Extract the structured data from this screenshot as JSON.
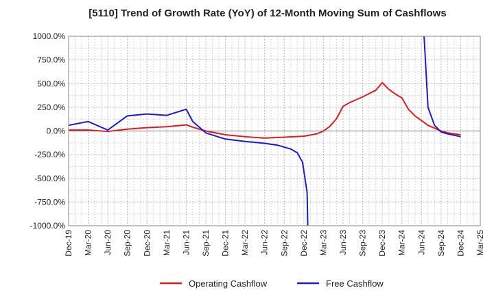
{
  "chart_data": {
    "type": "line",
    "title": "[5110]  Trend of Growth Rate (YoY) of 12-Month Moving Sum of Cashflows",
    "xlabel": "",
    "ylabel": "",
    "ylim": [
      -1000,
      1000
    ],
    "y_ticks": [
      "1000.0%",
      "750.0%",
      "500.0%",
      "250.0%",
      "0.0%",
      "-250.0%",
      "-500.0%",
      "-750.0%",
      "-1000.0%"
    ],
    "y_tick_values": [
      1000,
      750,
      500,
      250,
      0,
      -250,
      -500,
      -750,
      -1000
    ],
    "x_ticks": [
      "Dec-19",
      "Mar-20",
      "Jun-20",
      "Sep-20",
      "Dec-20",
      "Mar-21",
      "Jun-21",
      "Sep-21",
      "Dec-21",
      "Mar-22",
      "Jun-22",
      "Sep-22",
      "Dec-22",
      "Mar-23",
      "Jun-23",
      "Sep-23",
      "Dec-23",
      "Mar-24",
      "Jun-24",
      "Sep-24",
      "Dec-24",
      "Mar-25"
    ],
    "x_range": [
      0,
      63
    ],
    "grid": true,
    "legend_position": "bottom",
    "series": [
      {
        "name": "Operating Cashflow",
        "color": "#e31a1c",
        "points": [
          [
            0,
            10
          ],
          [
            3,
            10
          ],
          [
            6,
            -5
          ],
          [
            9,
            20
          ],
          [
            12,
            35
          ],
          [
            15,
            45
          ],
          [
            18,
            65
          ],
          [
            19,
            40
          ],
          [
            21,
            0
          ],
          [
            24,
            -40
          ],
          [
            27,
            -60
          ],
          [
            30,
            -75
          ],
          [
            33,
            -65
          ],
          [
            36,
            -55
          ],
          [
            38,
            -30
          ],
          [
            39,
            0
          ],
          [
            40,
            50
          ],
          [
            41,
            130
          ],
          [
            42,
            260
          ],
          [
            43,
            300
          ],
          [
            45,
            360
          ],
          [
            47,
            430
          ],
          [
            48,
            510
          ],
          [
            49,
            440
          ],
          [
            50,
            390
          ],
          [
            51,
            350
          ],
          [
            52,
            230
          ],
          [
            53,
            160
          ],
          [
            55,
            60
          ],
          [
            56,
            30
          ],
          [
            57,
            0
          ],
          [
            58,
            -20
          ],
          [
            59,
            -30
          ],
          [
            60,
            -40
          ]
        ]
      },
      {
        "name": "Free Cashflow",
        "color": "#1a1ad6",
        "points": [
          [
            0,
            60
          ],
          [
            3,
            100
          ],
          [
            6,
            10
          ],
          [
            9,
            160
          ],
          [
            12,
            180
          ],
          [
            15,
            165
          ],
          [
            18,
            230
          ],
          [
            19,
            100
          ],
          [
            21,
            -20
          ],
          [
            24,
            -85
          ],
          [
            27,
            -110
          ],
          [
            30,
            -130
          ],
          [
            32,
            -150
          ],
          [
            34,
            -190
          ],
          [
            35,
            -230
          ],
          [
            35.8,
            -330
          ],
          [
            36.5,
            -650
          ],
          [
            36.6,
            -1000
          ]
        ]
      },
      {
        "name": "Free Cashflow (continued)",
        "color": "#1a1ad6",
        "points": [
          [
            54.4,
            1000
          ],
          [
            55,
            250
          ],
          [
            56,
            60
          ],
          [
            57,
            -10
          ],
          [
            58,
            -30
          ],
          [
            60,
            -60
          ]
        ]
      }
    ],
    "legend": [
      {
        "label": "Operating Cashflow",
        "color": "#e31a1c"
      },
      {
        "label": "Free Cashflow",
        "color": "#1a1ad6"
      }
    ]
  }
}
